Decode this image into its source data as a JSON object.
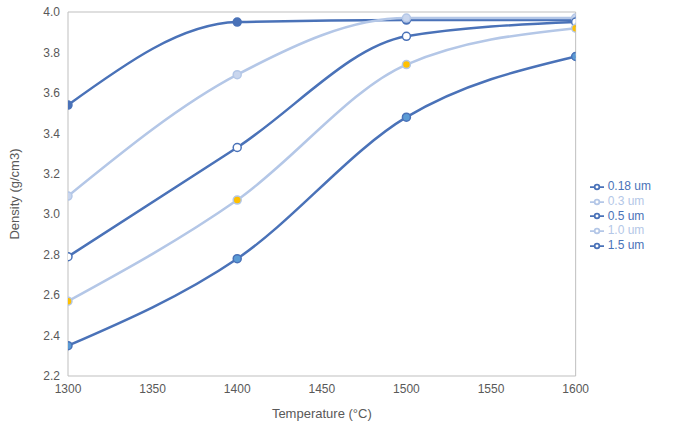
{
  "chart_data": {
    "type": "line",
    "x_label": "Temperature (°C)",
    "y_label": "Density (g/cm3)",
    "x": [
      1300,
      1400,
      1500,
      1600
    ],
    "series": [
      {
        "name": "0.18 um",
        "color": "#4a72b8",
        "marker": "circle",
        "values": [
          3.54,
          3.95,
          3.96,
          3.96
        ]
      },
      {
        "name": "0.3 um",
        "color": "#b4c7e7",
        "marker": "circle",
        "values": [
          3.09,
          3.69,
          3.97,
          3.97
        ]
      },
      {
        "name": "0.5 um",
        "color": "#4a72b8",
        "marker": "circle",
        "values": [
          2.79,
          3.33,
          3.88,
          3.95
        ]
      },
      {
        "name": "1.0 um",
        "color": "#b4c7e7",
        "marker": "circle",
        "values": [
          2.57,
          3.07,
          3.74,
          3.92
        ]
      },
      {
        "name": "1.5 um",
        "color": "#4a72b8",
        "marker": "circle",
        "values": [
          2.35,
          2.78,
          3.48,
          3.78
        ]
      }
    ],
    "xlim": [
      1300,
      1600
    ],
    "xticks": [
      1300,
      1350,
      1400,
      1450,
      1500,
      1550,
      1600
    ],
    "ylim": [
      2.2,
      4.0
    ],
    "yticks": [
      2.2,
      2.4,
      2.6,
      2.8,
      {
        "value": 3.0,
        "label": "3.0"
      },
      3.2,
      3.4,
      3.6,
      3.8,
      {
        "value": 4.0,
        "label": "4.0"
      }
    ],
    "grid": false,
    "legend": "right"
  }
}
